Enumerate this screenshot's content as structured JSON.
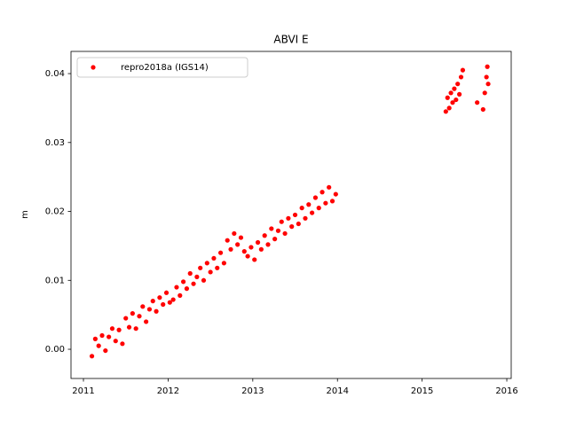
{
  "chart_data": {
    "type": "scatter",
    "title": "ABVI E",
    "y_label": "m",
    "legend": "upper left",
    "xlim": [
      2010.853,
      2016.052
    ],
    "ylim": [
      -0.00424,
      0.04322
    ],
    "xticks": [
      2011,
      2012,
      2013,
      2014,
      2015,
      2016
    ],
    "yticks": [
      {
        "value": 0,
        "label": "0.00"
      },
      {
        "value": 0.01,
        "label": "0.01"
      },
      {
        "value": 0.02,
        "label": "0.02"
      },
      {
        "value": 0.03,
        "label": "0.03"
      },
      {
        "value": 0.04,
        "label": "0.04"
      }
    ],
    "series": [
      {
        "name": "repro2018a (IGS14)",
        "color": "#ff0000",
        "x": [
          2011.1,
          2011.14,
          2011.18,
          2011.22,
          2011.26,
          2011.3,
          2011.34,
          2011.38,
          2011.42,
          2011.46,
          2011.5,
          2011.54,
          2011.58,
          2011.62,
          2011.66,
          2011.7,
          2011.74,
          2011.78,
          2011.82,
          2011.86,
          2011.9,
          2011.94,
          2011.98,
          2012.02,
          2012.06,
          2012.1,
          2012.14,
          2012.18,
          2012.22,
          2012.26,
          2012.3,
          2012.34,
          2012.38,
          2012.42,
          2012.46,
          2012.5,
          2012.54,
          2012.58,
          2012.62,
          2012.66,
          2012.7,
          2012.74,
          2012.78,
          2012.82,
          2012.86,
          2012.9,
          2012.94,
          2012.98,
          2013.02,
          2013.06,
          2013.1,
          2013.14,
          2013.18,
          2013.22,
          2013.26,
          2013.3,
          2013.34,
          2013.38,
          2013.42,
          2013.46,
          2013.5,
          2013.54,
          2013.58,
          2013.62,
          2013.66,
          2013.7,
          2013.74,
          2013.78,
          2013.82,
          2013.86,
          2013.9,
          2013.94,
          2013.98,
          2015.28,
          2015.3,
          2015.32,
          2015.34,
          2015.36,
          2015.38,
          2015.4,
          2015.42,
          2015.44,
          2015.46,
          2015.48,
          2015.65,
          2015.72,
          2015.74,
          2015.76,
          2015.77,
          2015.78
        ],
        "values": [
          -0.001,
          0.0015,
          0.0005,
          0.002,
          -0.0002,
          0.0018,
          0.003,
          0.0012,
          0.0028,
          0.0008,
          0.0045,
          0.0032,
          0.0052,
          0.003,
          0.0048,
          0.0062,
          0.004,
          0.0058,
          0.007,
          0.0055,
          0.0075,
          0.0065,
          0.0082,
          0.0068,
          0.0072,
          0.009,
          0.0078,
          0.0098,
          0.0088,
          0.011,
          0.0095,
          0.0105,
          0.0118,
          0.01,
          0.0125,
          0.0112,
          0.0132,
          0.0118,
          0.014,
          0.0125,
          0.0158,
          0.0145,
          0.0168,
          0.0152,
          0.0162,
          0.0142,
          0.0135,
          0.0148,
          0.013,
          0.0155,
          0.0145,
          0.0165,
          0.0152,
          0.0175,
          0.016,
          0.0172,
          0.0185,
          0.0168,
          0.019,
          0.0178,
          0.0195,
          0.0182,
          0.0205,
          0.019,
          0.021,
          0.0198,
          0.022,
          0.0205,
          0.0228,
          0.0212,
          0.0235,
          0.0215,
          0.0225,
          0.0345,
          0.0365,
          0.035,
          0.0372,
          0.0358,
          0.0378,
          0.0362,
          0.0385,
          0.037,
          0.0395,
          0.0405,
          0.0358,
          0.0348,
          0.0372,
          0.0395,
          0.041,
          0.0385
        ]
      }
    ]
  }
}
